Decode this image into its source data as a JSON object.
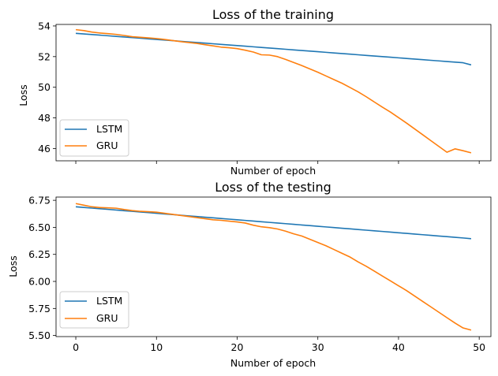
{
  "chart_data": [
    {
      "type": "line",
      "title": "Loss of the training",
      "xlabel": "Number of epoch",
      "ylabel": "Loss",
      "xlim": [
        -2.45,
        51.45
      ],
      "ylim": [
        45.2,
        54.1
      ],
      "xticks": [
        0,
        10,
        20,
        30,
        40,
        50
      ],
      "xtick_labels_visible": false,
      "yticks": [
        46,
        48,
        50,
        52,
        54
      ],
      "ytick_labels": [
        "46",
        "48",
        "50",
        "52",
        "54"
      ],
      "legend": "lower-left",
      "grid": false,
      "x": [
        0,
        1,
        2,
        3,
        4,
        5,
        6,
        7,
        8,
        9,
        10,
        11,
        12,
        13,
        14,
        15,
        16,
        17,
        18,
        19,
        20,
        21,
        22,
        23,
        24,
        25,
        26,
        27,
        28,
        29,
        30,
        31,
        32,
        33,
        34,
        35,
        36,
        37,
        38,
        39,
        40,
        41,
        42,
        43,
        44,
        45,
        46,
        47,
        48,
        49
      ],
      "series": [
        {
          "name": "LSTM",
          "color": "#1f77b4",
          "values": [
            53.52,
            53.48,
            53.44,
            53.4,
            53.36,
            53.32,
            53.28,
            53.24,
            53.2,
            53.16,
            53.12,
            53.08,
            53.04,
            53.0,
            52.96,
            52.92,
            52.88,
            52.84,
            52.8,
            52.76,
            52.72,
            52.68,
            52.64,
            52.6,
            52.56,
            52.52,
            52.48,
            52.44,
            52.4,
            52.36,
            52.32,
            52.28,
            52.24,
            52.2,
            52.16,
            52.12,
            52.08,
            52.04,
            52.0,
            51.96,
            51.92,
            51.88,
            51.84,
            51.8,
            51.76,
            51.72,
            51.68,
            51.64,
            51.6,
            51.46
          ]
        },
        {
          "name": "GRU",
          "color": "#ff7f0e",
          "values": [
            53.76,
            53.7,
            53.6,
            53.54,
            53.5,
            53.45,
            53.38,
            53.3,
            53.26,
            53.22,
            53.18,
            53.12,
            53.05,
            52.98,
            52.92,
            52.86,
            52.78,
            52.7,
            52.62,
            52.58,
            52.52,
            52.42,
            52.3,
            52.12,
            52.1,
            52.0,
            51.82,
            51.62,
            51.42,
            51.2,
            50.98,
            50.74,
            50.5,
            50.26,
            49.98,
            49.7,
            49.38,
            49.04,
            48.7,
            48.38,
            48.02,
            47.66,
            47.28,
            46.9,
            46.52,
            46.14,
            45.76,
            45.98,
            45.86,
            45.72
          ]
        }
      ]
    },
    {
      "type": "line",
      "title": "Loss of the testing",
      "xlabel": "Number of epoch",
      "ylabel": "Loss",
      "xlim": [
        -2.45,
        51.45
      ],
      "ylim": [
        5.49,
        6.78
      ],
      "xticks": [
        0,
        10,
        20,
        30,
        40,
        50
      ],
      "xtick_labels": [
        "0",
        "10",
        "20",
        "30",
        "40",
        "50"
      ],
      "yticks": [
        5.5,
        5.75,
        6.0,
        6.25,
        6.5,
        6.75
      ],
      "ytick_labels": [
        "5.50",
        "5.75",
        "6.00",
        "6.25",
        "6.50",
        "6.75"
      ],
      "legend": "lower-left",
      "grid": false,
      "x": [
        0,
        1,
        2,
        3,
        4,
        5,
        6,
        7,
        8,
        9,
        10,
        11,
        12,
        13,
        14,
        15,
        16,
        17,
        18,
        19,
        20,
        21,
        22,
        23,
        24,
        25,
        26,
        27,
        28,
        29,
        30,
        31,
        32,
        33,
        34,
        35,
        36,
        37,
        38,
        39,
        40,
        41,
        42,
        43,
        44,
        45,
        46,
        47,
        48,
        49
      ],
      "series": [
        {
          "name": "LSTM",
          "color": "#1f77b4",
          "values": [
            6.69,
            6.684,
            6.678,
            6.672,
            6.666,
            6.66,
            6.654,
            6.648,
            6.642,
            6.636,
            6.63,
            6.624,
            6.618,
            6.612,
            6.606,
            6.6,
            6.594,
            6.588,
            6.582,
            6.576,
            6.57,
            6.564,
            6.558,
            6.552,
            6.546,
            6.54,
            6.534,
            6.528,
            6.522,
            6.516,
            6.51,
            6.504,
            6.498,
            6.492,
            6.486,
            6.48,
            6.474,
            6.468,
            6.462,
            6.456,
            6.45,
            6.444,
            6.438,
            6.432,
            6.426,
            6.42,
            6.414,
            6.408,
            6.402,
            6.395
          ]
        },
        {
          "name": "GRU",
          "color": "#ff7f0e",
          "values": [
            6.72,
            6.705,
            6.69,
            6.683,
            6.68,
            6.677,
            6.665,
            6.655,
            6.648,
            6.645,
            6.64,
            6.63,
            6.62,
            6.61,
            6.6,
            6.59,
            6.58,
            6.57,
            6.565,
            6.557,
            6.55,
            6.54,
            6.52,
            6.505,
            6.497,
            6.485,
            6.465,
            6.44,
            6.42,
            6.39,
            6.36,
            6.33,
            6.295,
            6.26,
            6.225,
            6.18,
            6.14,
            6.095,
            6.05,
            6.005,
            5.96,
            5.915,
            5.865,
            5.815,
            5.765,
            5.715,
            5.665,
            5.615,
            5.57,
            5.55
          ]
        }
      ]
    }
  ]
}
